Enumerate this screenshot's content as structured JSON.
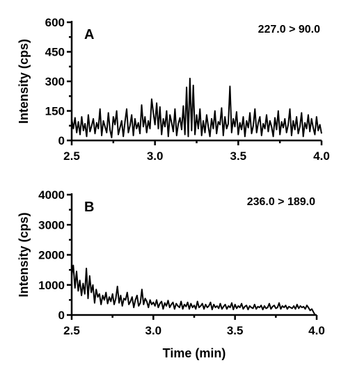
{
  "chart_data": [
    {
      "type": "line",
      "panel_label": "A",
      "annotation": "227.0 > 90.0",
      "title": "",
      "xlabel": "",
      "ylabel": "Intensity (cps)",
      "xlim": [
        2.5,
        4.0
      ],
      "ylim": [
        0,
        600
      ],
      "xticks": [
        "2.5",
        "3.0",
        "3.5",
        "4.0"
      ],
      "yticks": [
        "0",
        "150",
        "300",
        "450",
        "600"
      ],
      "grid": false,
      "x": [
        2.5,
        2.51,
        2.52,
        2.53,
        2.54,
        2.55,
        2.56,
        2.57,
        2.58,
        2.59,
        2.6,
        2.61,
        2.62,
        2.63,
        2.64,
        2.65,
        2.66,
        2.67,
        2.68,
        2.69,
        2.7,
        2.71,
        2.72,
        2.73,
        2.74,
        2.75,
        2.76,
        2.77,
        2.78,
        2.79,
        2.8,
        2.81,
        2.82,
        2.83,
        2.84,
        2.85,
        2.86,
        2.87,
        2.88,
        2.89,
        2.9,
        2.91,
        2.92,
        2.93,
        2.94,
        2.95,
        2.96,
        2.97,
        2.98,
        2.99,
        3.0,
        3.01,
        3.02,
        3.03,
        3.04,
        3.05,
        3.06,
        3.07,
        3.08,
        3.09,
        3.1,
        3.11,
        3.12,
        3.13,
        3.14,
        3.15,
        3.16,
        3.17,
        3.18,
        3.19,
        3.2,
        3.21,
        3.22,
        3.23,
        3.24,
        3.25,
        3.26,
        3.27,
        3.28,
        3.29,
        3.3,
        3.31,
        3.32,
        3.33,
        3.34,
        3.35,
        3.36,
        3.37,
        3.38,
        3.39,
        3.4,
        3.41,
        3.42,
        3.43,
        3.44,
        3.45,
        3.46,
        3.47,
        3.48,
        3.49,
        3.5,
        3.51,
        3.52,
        3.53,
        3.54,
        3.55,
        3.56,
        3.57,
        3.58,
        3.59,
        3.6,
        3.61,
        3.62,
        3.63,
        3.64,
        3.65,
        3.66,
        3.67,
        3.68,
        3.69,
        3.7,
        3.71,
        3.72,
        3.73,
        3.74,
        3.75,
        3.76,
        3.77,
        3.78,
        3.79,
        3.8,
        3.81,
        3.82,
        3.83,
        3.84,
        3.85,
        3.86,
        3.87,
        3.88,
        3.89,
        3.9,
        3.91,
        3.92,
        3.93,
        3.94,
        3.95,
        3.96,
        3.97,
        3.98,
        3.99,
        4.0
      ],
      "values": [
        110,
        60,
        115,
        40,
        95,
        30,
        120,
        50,
        85,
        20,
        130,
        45,
        75,
        110,
        35,
        90,
        60,
        160,
        25,
        100,
        70,
        40,
        140,
        55,
        15,
        120,
        80,
        150,
        30,
        65,
        100,
        20,
        95,
        160,
        40,
        75,
        130,
        25,
        110,
        60,
        90,
        35,
        180,
        70,
        120,
        40,
        100,
        60,
        210,
        140,
        80,
        190,
        60,
        170,
        30,
        110,
        70,
        150,
        20,
        130,
        90,
        45,
        160,
        25,
        85,
        115,
        55,
        175,
        30,
        270,
        20,
        315,
        50,
        280,
        30,
        130,
        60,
        160,
        25,
        100,
        40,
        130,
        70,
        20,
        110,
        60,
        150,
        35,
        95,
        80,
        165,
        25,
        120,
        60,
        85,
        275,
        40,
        110,
        70,
        145,
        30,
        90,
        55,
        120,
        20,
        100,
        65,
        140,
        35,
        75,
        160,
        40,
        90,
        120,
        25,
        85,
        60,
        130,
        45,
        100,
        70,
        20,
        115,
        55,
        150,
        30,
        95,
        65,
        110,
        40,
        80,
        160,
        25,
        100,
        55,
        120,
        35,
        70,
        140,
        20,
        90,
        60,
        130,
        45,
        110,
        65,
        30,
        120,
        50,
        80,
        35
      ]
    },
    {
      "type": "line",
      "panel_label": "B",
      "annotation": "236.0 > 189.0",
      "title": "",
      "xlabel": "Time (min)",
      "ylabel": "Intensity (cps)",
      "xlim": [
        2.5,
        4.0
      ],
      "ylim": [
        0,
        4000
      ],
      "xticks": [
        "2.5",
        "3.0",
        "3.5",
        "4.0"
      ],
      "yticks": [
        "0",
        "1000",
        "2000",
        "3000",
        "4000"
      ],
      "grid": false,
      "x": [
        2.5,
        2.51,
        2.52,
        2.53,
        2.54,
        2.55,
        2.56,
        2.57,
        2.58,
        2.59,
        2.6,
        2.61,
        2.62,
        2.63,
        2.64,
        2.65,
        2.66,
        2.67,
        2.68,
        2.69,
        2.7,
        2.71,
        2.72,
        2.73,
        2.74,
        2.75,
        2.76,
        2.77,
        2.78,
        2.79,
        2.8,
        2.81,
        2.82,
        2.83,
        2.84,
        2.85,
        2.86,
        2.87,
        2.88,
        2.89,
        2.9,
        2.91,
        2.92,
        2.93,
        2.94,
        2.95,
        2.96,
        2.97,
        2.98,
        2.99,
        3.0,
        3.01,
        3.02,
        3.03,
        3.04,
        3.05,
        3.06,
        3.07,
        3.08,
        3.09,
        3.1,
        3.11,
        3.12,
        3.13,
        3.14,
        3.15,
        3.16,
        3.17,
        3.18,
        3.19,
        3.2,
        3.21,
        3.22,
        3.23,
        3.24,
        3.25,
        3.26,
        3.27,
        3.28,
        3.29,
        3.3,
        3.31,
        3.32,
        3.33,
        3.34,
        3.35,
        3.36,
        3.37,
        3.38,
        3.39,
        3.4,
        3.41,
        3.42,
        3.43,
        3.44,
        3.45,
        3.46,
        3.47,
        3.48,
        3.49,
        3.5,
        3.51,
        3.52,
        3.53,
        3.54,
        3.55,
        3.56,
        3.57,
        3.58,
        3.59,
        3.6,
        3.61,
        3.62,
        3.63,
        3.64,
        3.65,
        3.66,
        3.67,
        3.68,
        3.69,
        3.7,
        3.71,
        3.72,
        3.73,
        3.74,
        3.75,
        3.76,
        3.77,
        3.78,
        3.79,
        3.8,
        3.81,
        3.82,
        3.83,
        3.84,
        3.85,
        3.86,
        3.87,
        3.88,
        3.89,
        3.9,
        3.91,
        3.92,
        3.93,
        3.94,
        3.95,
        3.96,
        3.97,
        3.98,
        3.99
      ],
      "values": [
        1300,
        1650,
        900,
        1450,
        800,
        1150,
        650,
        1050,
        700,
        1550,
        550,
        1300,
        750,
        1000,
        400,
        850,
        600,
        700,
        350,
        650,
        500,
        750,
        380,
        600,
        450,
        700,
        350,
        550,
        950,
        400,
        650,
        300,
        550,
        500,
        750,
        350,
        450,
        600,
        250,
        500,
        650,
        300,
        400,
        850,
        350,
        550,
        450,
        250,
        500,
        350,
        420,
        300,
        500,
        250,
        380,
        450,
        200,
        400,
        300,
        480,
        250,
        350,
        420,
        200,
        380,
        300,
        250,
        450,
        200,
        350,
        280,
        420,
        200,
        380,
        250,
        320,
        200,
        450,
        250,
        300,
        380,
        200,
        350,
        250,
        300,
        420,
        180,
        350,
        250,
        300,
        220,
        380,
        200,
        280,
        350,
        200,
        300,
        250,
        400,
        180,
        350,
        220,
        300,
        250,
        380,
        200,
        280,
        320,
        180,
        300,
        250,
        220,
        350,
        200,
        280,
        250,
        320,
        180,
        300,
        220,
        250,
        380,
        200,
        280,
        320,
        220,
        250,
        400,
        200,
        300,
        250,
        320,
        200,
        280,
        250,
        220,
        300,
        200,
        350,
        220,
        300,
        250,
        280,
        200,
        320,
        240,
        150,
        200,
        100,
        0
      ]
    }
  ]
}
